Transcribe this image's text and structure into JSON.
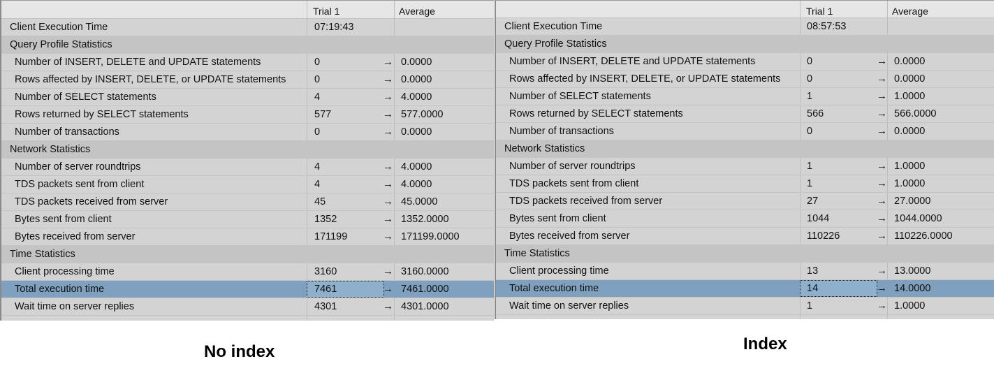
{
  "panels": [
    {
      "header": {
        "trial": "Trial  1",
        "average": "Average"
      },
      "rows": [
        {
          "label": "Client Execution Time",
          "trial": "07:19:43",
          "avg": "",
          "kind": "top"
        },
        {
          "label": "Query Profile Statistics",
          "trial": "",
          "avg": "",
          "kind": "section"
        },
        {
          "label": "Number of INSERT, DELETE and UPDATE statements",
          "trial": "0",
          "avg": "0.0000",
          "kind": "stat"
        },
        {
          "label": "Rows affected by INSERT, DELETE, or UPDATE statements",
          "trial": "0",
          "avg": "0.0000",
          "kind": "stat"
        },
        {
          "label": "Number of SELECT statements",
          "trial": "4",
          "avg": "4.0000",
          "kind": "stat"
        },
        {
          "label": "Rows returned by SELECT statements",
          "trial": "577",
          "avg": "577.0000",
          "kind": "stat"
        },
        {
          "label": "Number of transactions",
          "trial": "0",
          "avg": "0.0000",
          "kind": "stat"
        },
        {
          "label": "Network Statistics",
          "trial": "",
          "avg": "",
          "kind": "section"
        },
        {
          "label": "Number of server roundtrips",
          "trial": "4",
          "avg": "4.0000",
          "kind": "stat"
        },
        {
          "label": "TDS packets sent from client",
          "trial": "4",
          "avg": "4.0000",
          "kind": "stat"
        },
        {
          "label": "TDS packets received from server",
          "trial": "45",
          "avg": "45.0000",
          "kind": "stat"
        },
        {
          "label": "Bytes sent from client",
          "trial": "1352",
          "avg": "1352.0000",
          "kind": "stat"
        },
        {
          "label": "Bytes received from server",
          "trial": "171199",
          "avg": "171199.0000",
          "kind": "stat"
        },
        {
          "label": "Time Statistics",
          "trial": "",
          "avg": "",
          "kind": "section"
        },
        {
          "label": "Client processing time",
          "trial": "3160",
          "avg": "3160.0000",
          "kind": "stat"
        },
        {
          "label": "Total execution time",
          "trial": "7461",
          "avg": "7461.0000",
          "kind": "selected"
        },
        {
          "label": "Wait time on server replies",
          "trial": "4301",
          "avg": "4301.0000",
          "kind": "stat"
        }
      ],
      "caption": "No index"
    },
    {
      "header": {
        "trial": "Trial  1",
        "average": "Average"
      },
      "rows": [
        {
          "label": "Client Execution Time",
          "trial": "08:57:53",
          "avg": "",
          "kind": "top"
        },
        {
          "label": "Query Profile Statistics",
          "trial": "",
          "avg": "",
          "kind": "section"
        },
        {
          "label": "Number of INSERT, DELETE and UPDATE statements",
          "trial": "0",
          "avg": "0.0000",
          "kind": "stat"
        },
        {
          "label": "Rows affected by INSERT, DELETE, or UPDATE statements",
          "trial": "0",
          "avg": "0.0000",
          "kind": "stat"
        },
        {
          "label": "Number of SELECT statements",
          "trial": "1",
          "avg": "1.0000",
          "kind": "stat"
        },
        {
          "label": "Rows returned by SELECT statements",
          "trial": "566",
          "avg": "566.0000",
          "kind": "stat"
        },
        {
          "label": "Number of transactions",
          "trial": "0",
          "avg": "0.0000",
          "kind": "stat"
        },
        {
          "label": "Network Statistics",
          "trial": "",
          "avg": "",
          "kind": "section"
        },
        {
          "label": "Number of server roundtrips",
          "trial": "1",
          "avg": "1.0000",
          "kind": "stat"
        },
        {
          "label": "TDS packets sent from client",
          "trial": "1",
          "avg": "1.0000",
          "kind": "stat"
        },
        {
          "label": "TDS packets received from server",
          "trial": "27",
          "avg": "27.0000",
          "kind": "stat"
        },
        {
          "label": "Bytes sent from client",
          "trial": "1044",
          "avg": "1044.0000",
          "kind": "stat"
        },
        {
          "label": "Bytes received from server",
          "trial": "110226",
          "avg": "110226.0000",
          "kind": "stat"
        },
        {
          "label": "Time Statistics",
          "trial": "",
          "avg": "",
          "kind": "section"
        },
        {
          "label": "Client processing time",
          "trial": "13",
          "avg": "13.0000",
          "kind": "stat"
        },
        {
          "label": "Total execution time",
          "trial": "14",
          "avg": "14.0000",
          "kind": "selected"
        },
        {
          "label": "Wait time on server replies",
          "trial": "1",
          "avg": "1.0000",
          "kind": "stat"
        }
      ],
      "caption": "Index"
    }
  ],
  "arrow_glyph": "→",
  "colors": {
    "panel_bg": "#d3d3d3",
    "section_bg": "#c4c4c4",
    "selected_bg": "#7fa0be",
    "header_bg": "#e6e6e6"
  }
}
